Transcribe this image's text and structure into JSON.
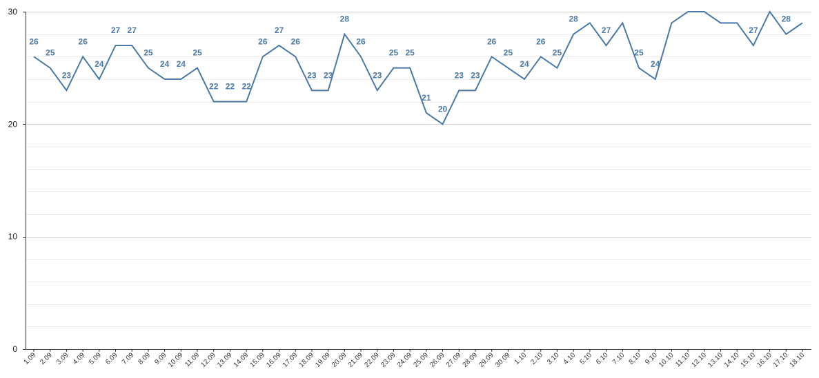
{
  "chart_data": {
    "type": "line",
    "title": "",
    "xlabel": "",
    "ylabel": "",
    "ylim": [
      0,
      30
    ],
    "y_ticks": [
      "0",
      "10",
      "20",
      "30"
    ],
    "minor_step": 2,
    "grid": true,
    "color": "#4a78a8",
    "categories": [
      "1.09",
      "2.09",
      "3.09",
      "4.09",
      "5.09",
      "6.09",
      "7.09",
      "8.09",
      "9.09",
      "10.09",
      "11.09",
      "12.09",
      "13.09",
      "14.09",
      "15.09",
      "16.09",
      "17.09",
      "18.09",
      "19.09",
      "20.09",
      "21.09",
      "22.09",
      "23.09",
      "24.09",
      "25.09",
      "26.09",
      "27.09",
      "28.09",
      "29.09",
      "30.09",
      "1.10",
      "2.10",
      "3.10",
      "4.10",
      "5.10",
      "6.10",
      "7.10",
      "8.10",
      "9.10",
      "10.10",
      "11.10",
      "12.10",
      "13.10",
      "14.10",
      "15.10",
      "16.10",
      "17.10",
      "18.10"
    ],
    "values": [
      26,
      25,
      23,
      26,
      24,
      27,
      27,
      25,
      24,
      24,
      25,
      22,
      22,
      22,
      26,
      27,
      26,
      23,
      23,
      28,
      26,
      23,
      25,
      25,
      21,
      20,
      23,
      23,
      26,
      25,
      24,
      26,
      25,
      28,
      29,
      27,
      29,
      25,
      24,
      29,
      30,
      30,
      29,
      29,
      27,
      30,
      28,
      29
    ],
    "data_labels": [
      "26",
      "25",
      "23",
      "26",
      "24",
      "27",
      "27",
      "25",
      "24",
      "24",
      "25",
      "22",
      "22",
      "22",
      "26",
      "27",
      "26",
      "23",
      "23",
      "28",
      "26",
      "23",
      "25",
      "25",
      "21",
      "20",
      "23",
      "23",
      "26",
      "25",
      "24",
      "26",
      "25",
      "28",
      "",
      "27",
      "",
      "25",
      "24",
      "",
      "",
      "",
      "",
      "",
      "27",
      "",
      "28",
      ""
    ]
  }
}
